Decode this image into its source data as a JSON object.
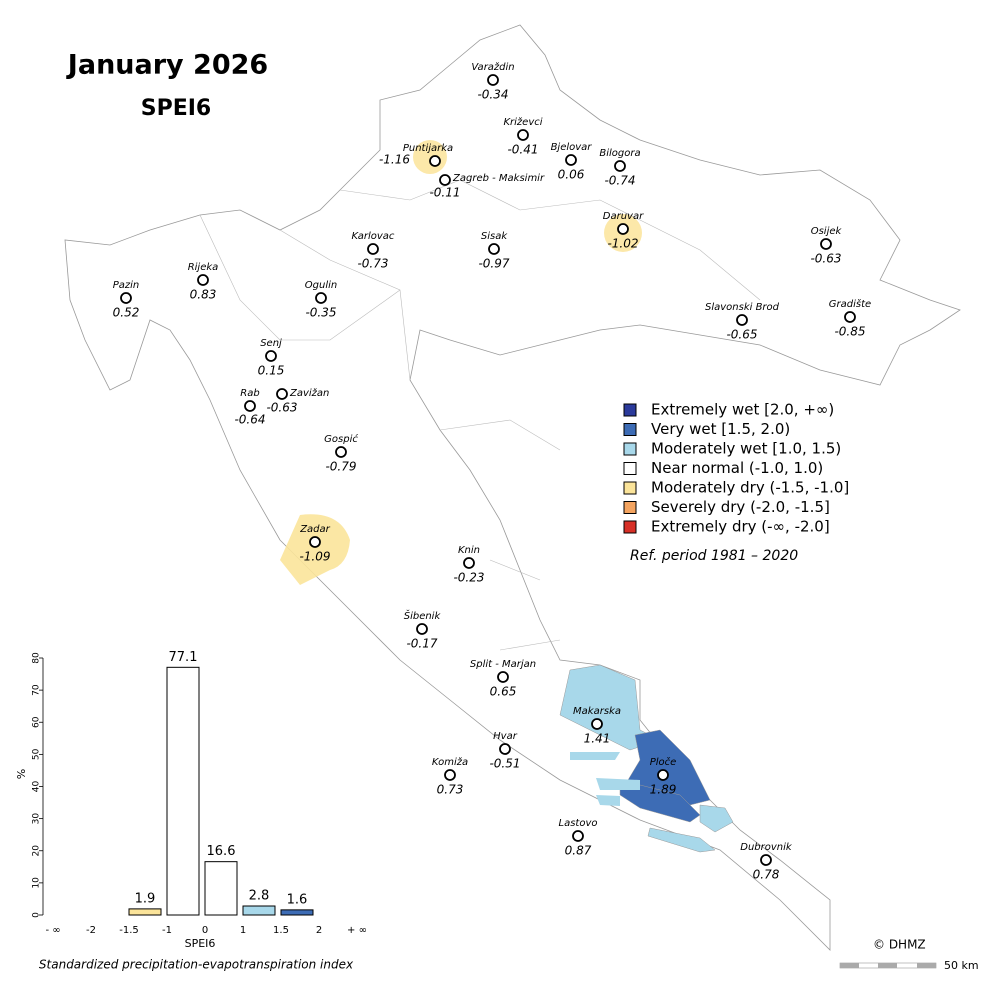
{
  "title": "January 2026",
  "subtitle": "SPEI6",
  "stations": [
    {
      "name": "Varaždin",
      "value": -0.34
    },
    {
      "name": "Križevci",
      "value": -0.41
    },
    {
      "name": "Puntijarka",
      "value": -1.16
    },
    {
      "name": "Zagreb - Maksimir",
      "value": -0.11
    },
    {
      "name": "Bjelovar",
      "value": 0.06
    },
    {
      "name": "Bilogora",
      "value": -0.74
    },
    {
      "name": "Daruvar",
      "value": -1.02
    },
    {
      "name": "Karlovac",
      "value": -0.73
    },
    {
      "name": "Sisak",
      "value": -0.97
    },
    {
      "name": "Osijek",
      "value": -0.63
    },
    {
      "name": "Pazin",
      "value": 0.52
    },
    {
      "name": "Rijeka",
      "value": 0.83
    },
    {
      "name": "Ogulin",
      "value": -0.35
    },
    {
      "name": "Slavonski Brod",
      "value": -0.65
    },
    {
      "name": "Gradište",
      "value": -0.85
    },
    {
      "name": "Senj",
      "value": 0.15
    },
    {
      "name": "Zavižan",
      "value": -0.63
    },
    {
      "name": "Rab",
      "value": -0.64
    },
    {
      "name": "Gospić",
      "value": -0.79
    },
    {
      "name": "Zadar",
      "value": -1.09
    },
    {
      "name": "Knin",
      "value": -0.23
    },
    {
      "name": "Šibenik",
      "value": -0.17
    },
    {
      "name": "Split - Marjan",
      "value": 0.65
    },
    {
      "name": "Makarska",
      "value": 1.41
    },
    {
      "name": "Hvar",
      "value": -0.51
    },
    {
      "name": "Komiža",
      "value": 0.73
    },
    {
      "name": "Ploče",
      "value": 1.89
    },
    {
      "name": "Lastovo",
      "value": 0.87
    },
    {
      "name": "Dubrovnik",
      "value": 0.78
    }
  ],
  "legend": [
    {
      "label": "Extremely wet [2.0, +∞)",
      "color": "#2b3a9b"
    },
    {
      "label": "Very wet [1.5, 2.0)",
      "color": "#3d6cb5"
    },
    {
      "label": "Moderately wet [1.0, 1.5)",
      "color": "#a8d8ea"
    },
    {
      "label": "Near normal (-1.0, 1.0)",
      "color": "#ffffff"
    },
    {
      "label": "Moderately dry (-1.5, -1.0]",
      "color": "#fbe49a"
    },
    {
      "label": "Severely dry (-2.0, -1.5]",
      "color": "#f4a460"
    },
    {
      "label": "Extremely dry (-∞, -2.0]",
      "color": "#d73027"
    }
  ],
  "ref_period": "Ref. period 1981 – 2020",
  "copyright": "© DHMZ",
  "scale_label": "50 km",
  "chart_data": {
    "type": "histogram",
    "edges": [
      "- ∞",
      "-2",
      "-1.5",
      "-1",
      "0",
      "1",
      "1.5",
      "2",
      "+ ∞"
    ],
    "values": [
      0,
      0,
      1.9,
      77.1,
      16.6,
      2.8,
      1.6,
      0
    ],
    "value_labels": [
      null,
      null,
      "1.9",
      "77.1",
      "16.6",
      "2.8",
      "1.6",
      null
    ],
    "colors": [
      "#ffffff",
      "#ffffff",
      "#fbe49a",
      "#ffffff",
      "#ffffff",
      "#a8d8ea",
      "#3d6cb5",
      "#ffffff"
    ],
    "ylim": [
      0,
      80
    ],
    "yticks": [
      0,
      10,
      20,
      30,
      40,
      50,
      60,
      70,
      80
    ],
    "ylabel": "%",
    "xlabel": "SPEI6",
    "caption": "Standardized precipitation-evapotranspiration index"
  }
}
